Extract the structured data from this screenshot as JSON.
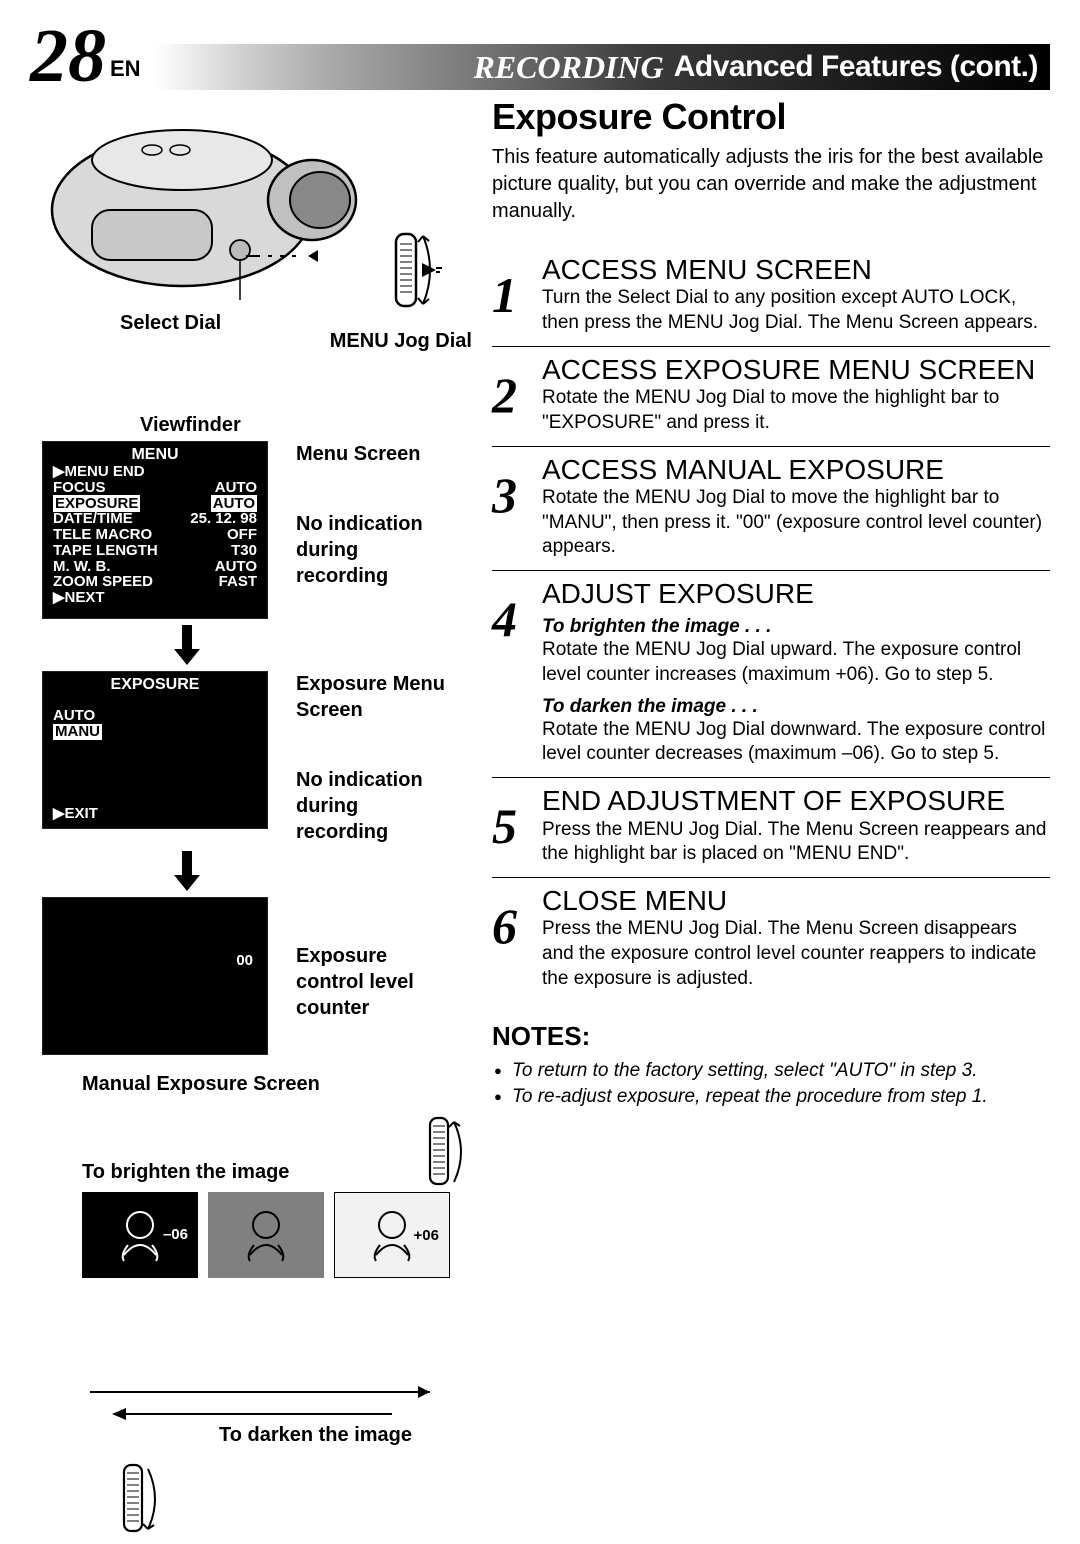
{
  "page": {
    "number": "28",
    "lang": "EN"
  },
  "header": {
    "recording": "RECORDING",
    "advanced": "Advanced Features (cont.)"
  },
  "left": {
    "select_dial": "Select Dial",
    "menu_jog_dial": "MENU Jog Dial",
    "viewfinder": "Viewfinder",
    "menu_screen_label": "Menu Screen",
    "exposure_menu_label": "Exposure Menu Screen",
    "no_indication": "No indication during recording",
    "exposure_counter_label": "Exposure control level counter",
    "manual_exposure_label": "Manual Exposure Screen",
    "to_brighten": "To brighten the image",
    "to_darken": "To darken the image",
    "screen1": {
      "title": "MENU",
      "rows": [
        [
          "▶MENU END",
          ""
        ],
        [
          "FOCUS",
          "AUTO"
        ],
        [
          "EXPOSURE",
          "AUTO"
        ],
        [
          "DATE/TIME",
          "25. 12. 98"
        ],
        [
          "TELE MACRO",
          "OFF"
        ],
        [
          "TAPE LENGTH",
          "T30"
        ],
        [
          "M. W. B.",
          "AUTO"
        ],
        [
          "ZOOM SPEED",
          "FAST"
        ],
        [
          "▶NEXT",
          ""
        ]
      ],
      "highlight_row": 2
    },
    "screen2": {
      "title": "EXPOSURE",
      "rows": [
        [
          "AUTO",
          ""
        ],
        [
          "MANU",
          ""
        ]
      ],
      "highlight_row": 1,
      "exit": "EXIT"
    },
    "screen3": {
      "value": "00"
    },
    "thumb_dark": "–06",
    "thumb_light": "+06"
  },
  "right": {
    "title": "Exposure Control",
    "intro": "This feature automatically adjusts the iris for the best available picture quality, but you can override and make the adjustment manually.",
    "steps": [
      {
        "n": "1",
        "title": "ACCESS MENU SCREEN",
        "body": "Turn the Select Dial to any position except AUTO LOCK, then press the MENU Jog Dial. The Menu Screen appears."
      },
      {
        "n": "2",
        "title": "ACCESS EXPOSURE MENU SCREEN",
        "body": "Rotate the MENU Jog Dial to move the highlight bar to \"EXPOSURE\" and press it."
      },
      {
        "n": "3",
        "title": "ACCESS MANUAL EXPOSURE",
        "body": "Rotate the MENU Jog Dial to move the highlight bar to \"MANU\", then press it. \"00\" (exposure control level counter) appears."
      },
      {
        "n": "4",
        "title": "ADJUST EXPOSURE",
        "sub1_t": "To brighten the image . . .",
        "sub1_b": "Rotate the MENU Jog Dial upward. The exposure control level counter increases (maximum +06). Go to step 5.",
        "sub2_t": "To darken the image . . .",
        "sub2_b": "Rotate the MENU Jog Dial downward. The exposure control level counter decreases (maximum –06). Go to step 5."
      },
      {
        "n": "5",
        "title": "END ADJUSTMENT OF EXPOSURE",
        "body": "Press the MENU Jog Dial. The Menu Screen reappears and the highlight bar is placed on \"MENU END\"."
      },
      {
        "n": "6",
        "title": "CLOSE MENU",
        "body": "Press the MENU Jog Dial. The Menu Screen disappears and the exposure control level counter reappers to indicate the exposure is adjusted."
      }
    ],
    "notes_title": "NOTES:",
    "notes": [
      "To return to the factory setting, select \"AUTO\" in step 3.",
      "To re-adjust exposure, repeat the procedure from step 1."
    ]
  }
}
